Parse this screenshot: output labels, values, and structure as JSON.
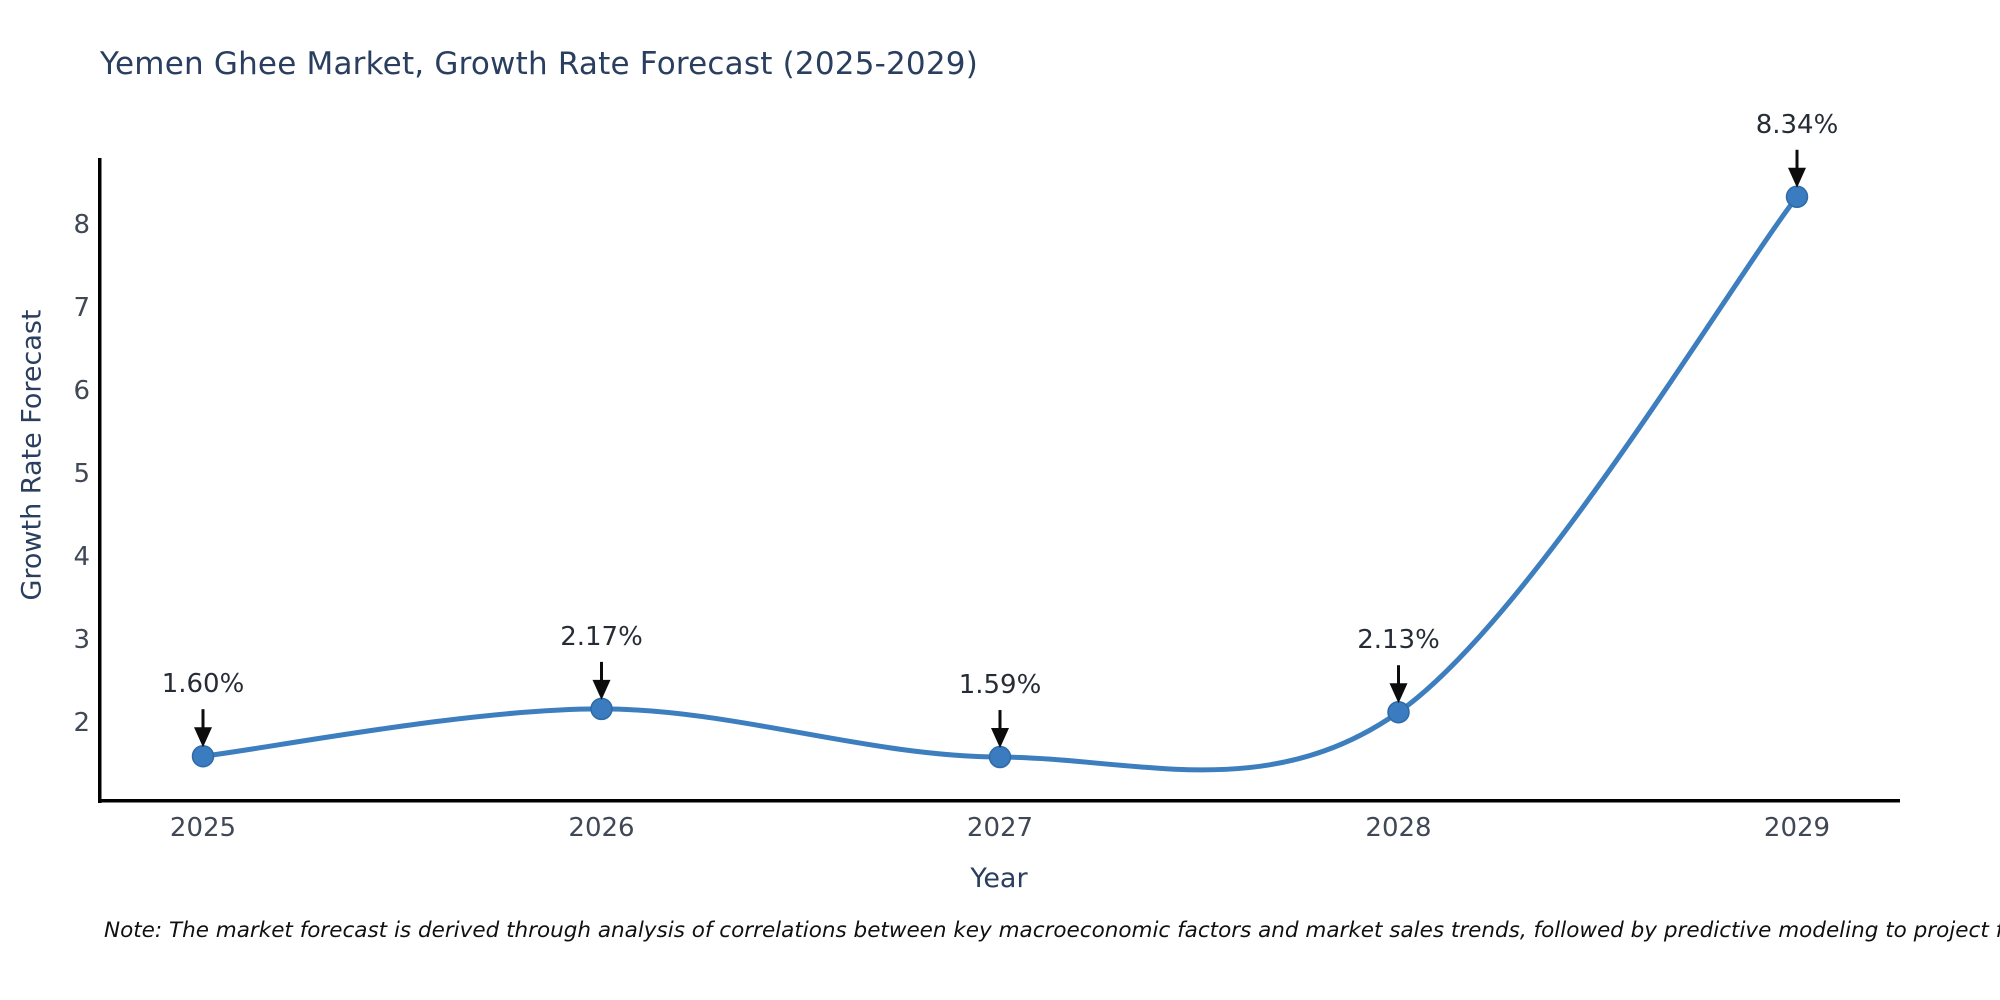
{
  "note": "Note: The market forecast is derived through analysis of correlations between key macroeconomic factors and market sales trends, followed by predictive modeling to project future sales.",
  "chart_data": {
    "type": "line",
    "title": "Yemen Ghee Market, Growth Rate Forecast (2025-2029)",
    "xlabel": "Year",
    "ylabel": "Growth Rate Forecast",
    "categories": [
      "2025",
      "2026",
      "2027",
      "2028",
      "2029"
    ],
    "x": [
      2025,
      2026,
      2027,
      2028,
      2029
    ],
    "values": [
      1.6,
      2.17,
      1.59,
      2.13,
      8.34
    ],
    "point_labels": [
      "1.60%",
      "2.17%",
      "1.59%",
      "2.13%",
      "8.34%"
    ],
    "y_ticks": [
      2,
      3,
      4,
      5,
      6,
      7,
      8
    ],
    "ylim": [
      1.05,
      8.8
    ],
    "grid": false,
    "legend": "none",
    "line_color": "#3d7ebf",
    "marker_color": "#3a7cbf",
    "marker_edge_color": "#2e6aa6",
    "axis_color": "#000000",
    "arrow_color": "#0c0c0c",
    "title_color": "#2a3f5f",
    "tick_color": "#3f4854",
    "annotation_color": "#262c36"
  }
}
